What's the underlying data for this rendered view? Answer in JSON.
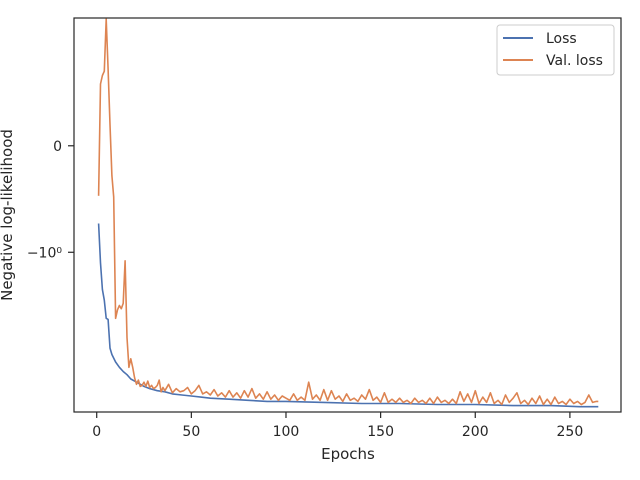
{
  "chart_data": {
    "type": "line",
    "xlabel": "Epochs",
    "ylabel": "Negative log-likelihood",
    "xlim": [
      -12,
      277
    ],
    "ylim": [
      -2.5,
      1.2
    ],
    "y_scale": "symlog",
    "grid": false,
    "legend_position": "top-right",
    "x_ticks": [
      {
        "value": 0,
        "label": "0"
      },
      {
        "value": 50,
        "label": "50"
      },
      {
        "value": 100,
        "label": "100"
      },
      {
        "value": 150,
        "label": "150"
      },
      {
        "value": 200,
        "label": "200"
      },
      {
        "value": 250,
        "label": "250"
      }
    ],
    "y_ticks": [
      {
        "value": 0,
        "label": "0"
      },
      {
        "value": -1,
        "label": "−10⁰"
      }
    ],
    "series": [
      {
        "name": "Loss",
        "color": "#4c72b0",
        "points": [
          [
            1,
            -0.73
          ],
          [
            2,
            -1.1
          ],
          [
            3,
            -1.35
          ],
          [
            4,
            -1.45
          ],
          [
            5,
            -1.62
          ],
          [
            6,
            -1.63
          ],
          [
            7,
            -1.9
          ],
          [
            8,
            -1.96
          ],
          [
            10,
            -2.03
          ],
          [
            12,
            -2.08
          ],
          [
            14,
            -2.12
          ],
          [
            16,
            -2.15
          ],
          [
            18,
            -2.19
          ],
          [
            20,
            -2.21
          ],
          [
            22,
            -2.23
          ],
          [
            25,
            -2.26
          ],
          [
            28,
            -2.28
          ],
          [
            32,
            -2.3
          ],
          [
            36,
            -2.31
          ],
          [
            40,
            -2.33
          ],
          [
            45,
            -2.34
          ],
          [
            50,
            -2.35
          ],
          [
            55,
            -2.36
          ],
          [
            60,
            -2.37
          ],
          [
            70,
            -2.38
          ],
          [
            80,
            -2.39
          ],
          [
            90,
            -2.4
          ],
          [
            100,
            -2.4
          ],
          [
            120,
            -2.41
          ],
          [
            140,
            -2.42
          ],
          [
            160,
            -2.42
          ],
          [
            180,
            -2.43
          ],
          [
            200,
            -2.43
          ],
          [
            220,
            -2.44
          ],
          [
            240,
            -2.44
          ],
          [
            255,
            -2.45
          ],
          [
            265,
            -2.45
          ]
        ]
      },
      {
        "name": "Val. loss",
        "color": "#dd8452",
        "points": [
          [
            1,
            -0.47
          ],
          [
            2,
            0.58
          ],
          [
            3,
            0.66
          ],
          [
            4,
            0.7
          ],
          [
            5,
            1.19
          ],
          [
            6,
            0.72
          ],
          [
            7,
            0.2
          ],
          [
            8,
            -0.28
          ],
          [
            9,
            -0.48
          ],
          [
            10,
            -1.62
          ],
          [
            11,
            -1.54
          ],
          [
            12,
            -1.5
          ],
          [
            13,
            -1.53
          ],
          [
            14,
            -1.48
          ],
          [
            15,
            -1.08
          ],
          [
            16,
            -1.8
          ],
          [
            17,
            -2.08
          ],
          [
            18,
            -2.0
          ],
          [
            19,
            -2.08
          ],
          [
            20,
            -2.18
          ],
          [
            21,
            -2.24
          ],
          [
            22,
            -2.2
          ],
          [
            23,
            -2.26
          ],
          [
            24,
            -2.25
          ],
          [
            25,
            -2.22
          ],
          [
            26,
            -2.26
          ],
          [
            27,
            -2.21
          ],
          [
            28,
            -2.27
          ],
          [
            29,
            -2.25
          ],
          [
            30,
            -2.28
          ],
          [
            31,
            -2.27
          ],
          [
            32,
            -2.25
          ],
          [
            33,
            -2.2
          ],
          [
            34,
            -2.31
          ],
          [
            35,
            -2.27
          ],
          [
            36,
            -2.3
          ],
          [
            38,
            -2.24
          ],
          [
            40,
            -2.32
          ],
          [
            42,
            -2.28
          ],
          [
            44,
            -2.31
          ],
          [
            46,
            -2.3
          ],
          [
            48,
            -2.27
          ],
          [
            50,
            -2.33
          ],
          [
            52,
            -2.3
          ],
          [
            54,
            -2.25
          ],
          [
            56,
            -2.33
          ],
          [
            58,
            -2.31
          ],
          [
            60,
            -2.34
          ],
          [
            62,
            -2.29
          ],
          [
            64,
            -2.35
          ],
          [
            66,
            -2.32
          ],
          [
            68,
            -2.36
          ],
          [
            70,
            -2.3
          ],
          [
            72,
            -2.36
          ],
          [
            74,
            -2.32
          ],
          [
            76,
            -2.37
          ],
          [
            78,
            -2.3
          ],
          [
            80,
            -2.36
          ],
          [
            82,
            -2.28
          ],
          [
            84,
            -2.37
          ],
          [
            86,
            -2.33
          ],
          [
            88,
            -2.38
          ],
          [
            90,
            -2.31
          ],
          [
            92,
            -2.38
          ],
          [
            94,
            -2.34
          ],
          [
            96,
            -2.39
          ],
          [
            98,
            -2.35
          ],
          [
            100,
            -2.37
          ],
          [
            102,
            -2.39
          ],
          [
            104,
            -2.33
          ],
          [
            106,
            -2.39
          ],
          [
            108,
            -2.36
          ],
          [
            110,
            -2.39
          ],
          [
            112,
            -2.22
          ],
          [
            114,
            -2.38
          ],
          [
            116,
            -2.34
          ],
          [
            118,
            -2.39
          ],
          [
            120,
            -2.29
          ],
          [
            122,
            -2.39
          ],
          [
            124,
            -2.3
          ],
          [
            126,
            -2.38
          ],
          [
            128,
            -2.35
          ],
          [
            130,
            -2.4
          ],
          [
            132,
            -2.33
          ],
          [
            134,
            -2.39
          ],
          [
            136,
            -2.37
          ],
          [
            138,
            -2.4
          ],
          [
            140,
            -2.34
          ],
          [
            142,
            -2.38
          ],
          [
            144,
            -2.29
          ],
          [
            146,
            -2.39
          ],
          [
            148,
            -2.36
          ],
          [
            150,
            -2.41
          ],
          [
            152,
            -2.32
          ],
          [
            154,
            -2.41
          ],
          [
            156,
            -2.38
          ],
          [
            158,
            -2.41
          ],
          [
            160,
            -2.37
          ],
          [
            162,
            -2.41
          ],
          [
            164,
            -2.39
          ],
          [
            166,
            -2.42
          ],
          [
            168,
            -2.37
          ],
          [
            170,
            -2.41
          ],
          [
            172,
            -2.39
          ],
          [
            174,
            -2.42
          ],
          [
            176,
            -2.37
          ],
          [
            178,
            -2.42
          ],
          [
            180,
            -2.36
          ],
          [
            182,
            -2.41
          ],
          [
            184,
            -2.39
          ],
          [
            186,
            -2.42
          ],
          [
            188,
            -2.38
          ],
          [
            190,
            -2.42
          ],
          [
            192,
            -2.31
          ],
          [
            194,
            -2.4
          ],
          [
            196,
            -2.33
          ],
          [
            198,
            -2.41
          ],
          [
            200,
            -2.3
          ],
          [
            202,
            -2.42
          ],
          [
            204,
            -2.36
          ],
          [
            206,
            -2.41
          ],
          [
            208,
            -2.32
          ],
          [
            210,
            -2.42
          ],
          [
            212,
            -2.39
          ],
          [
            214,
            -2.43
          ],
          [
            216,
            -2.34
          ],
          [
            218,
            -2.41
          ],
          [
            220,
            -2.37
          ],
          [
            222,
            -2.32
          ],
          [
            224,
            -2.42
          ],
          [
            226,
            -2.39
          ],
          [
            228,
            -2.43
          ],
          [
            230,
            -2.37
          ],
          [
            232,
            -2.42
          ],
          [
            234,
            -2.35
          ],
          [
            236,
            -2.43
          ],
          [
            238,
            -2.38
          ],
          [
            240,
            -2.43
          ],
          [
            242,
            -2.36
          ],
          [
            244,
            -2.42
          ],
          [
            246,
            -2.4
          ],
          [
            248,
            -2.43
          ],
          [
            250,
            -2.38
          ],
          [
            252,
            -2.42
          ],
          [
            254,
            -2.4
          ],
          [
            256,
            -2.43
          ],
          [
            258,
            -2.41
          ],
          [
            260,
            -2.34
          ],
          [
            262,
            -2.41
          ],
          [
            264,
            -2.4
          ],
          [
            265,
            -2.4
          ]
        ]
      }
    ]
  }
}
